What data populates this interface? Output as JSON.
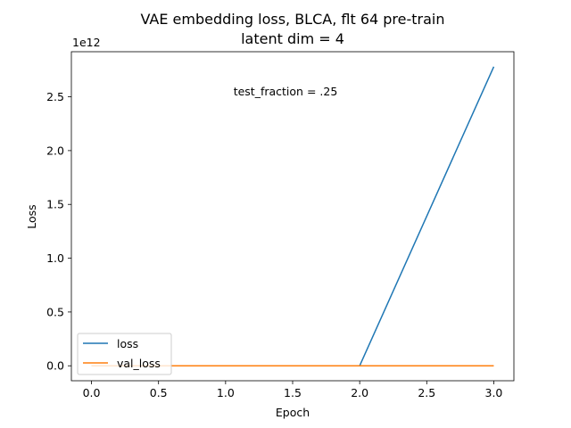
{
  "chart_data": {
    "type": "line",
    "title": "VAE embedding loss, BLCA, flt 64 pre-train",
    "subtitle": "latent dim = 4",
    "xlabel": "Epoch",
    "ylabel": "Loss",
    "y_offset_label": "1e12",
    "annotation": "test_fraction = .25",
    "x": [
      0,
      1,
      2,
      3
    ],
    "series": [
      {
        "name": "loss",
        "color": "#1f77b4",
        "values": [
          0,
          0,
          0,
          2.78
        ]
      },
      {
        "name": "val_loss",
        "color": "#ff7f0e",
        "values": [
          0,
          0,
          0,
          0
        ]
      }
    ],
    "xlim": [
      -0.15,
      3.15
    ],
    "ylim": [
      -0.139,
      2.919
    ],
    "xticks": [
      0.0,
      0.5,
      1.0,
      1.5,
      2.0,
      2.5,
      3.0
    ],
    "xtick_labels": [
      "0.0",
      "0.5",
      "1.0",
      "1.5",
      "2.0",
      "2.5",
      "3.0"
    ],
    "yticks": [
      0.0,
      0.5,
      1.0,
      1.5,
      2.0,
      2.5
    ],
    "ytick_labels": [
      "0.0",
      "0.5",
      "1.0",
      "1.5",
      "2.0",
      "2.5"
    ],
    "grid": false,
    "legend_position": "lower-left"
  }
}
